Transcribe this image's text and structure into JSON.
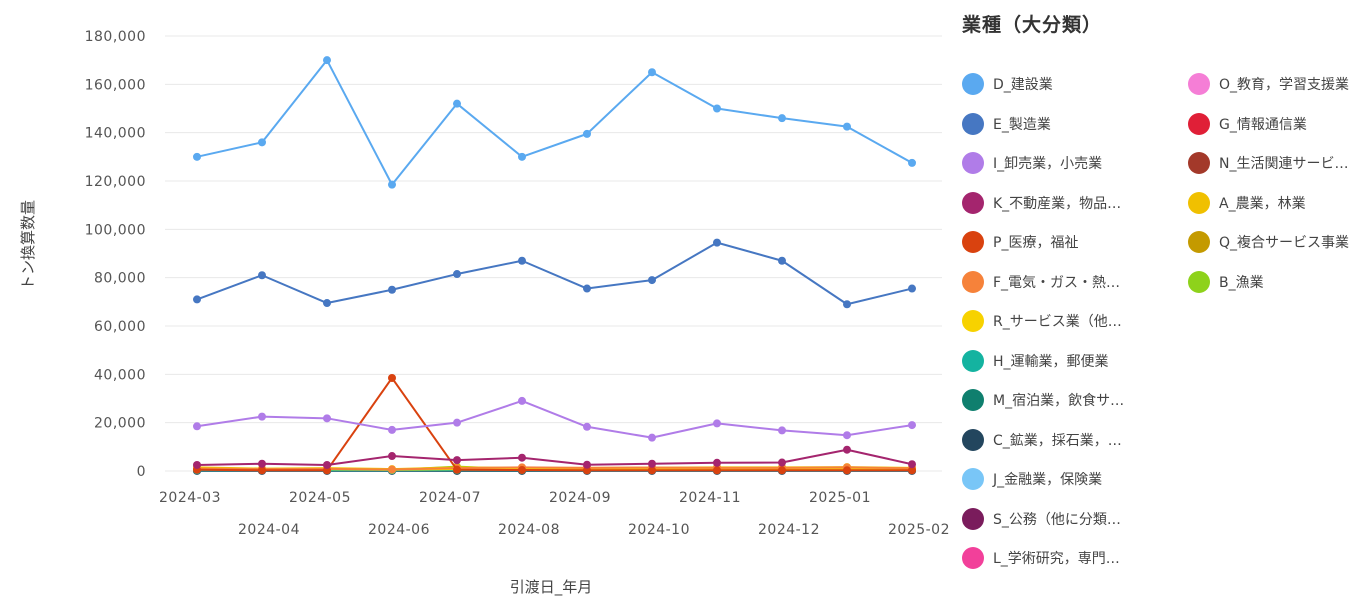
{
  "chart_data": {
    "type": "line",
    "xlabel": "引渡日_年月",
    "ylabel": "トン換算数量",
    "ylim": [
      0,
      180000
    ],
    "yticks": [
      0,
      20000,
      40000,
      60000,
      80000,
      100000,
      120000,
      140000,
      160000,
      180000
    ],
    "ytick_labels": [
      "0",
      "20,000",
      "40,000",
      "60,000",
      "80,000",
      "100,000",
      "120,000",
      "140,000",
      "160,000",
      "180,000"
    ],
    "categories": [
      "2024-03",
      "2024-04",
      "2024-05",
      "2024-06",
      "2024-07",
      "2024-08",
      "2024-09",
      "2024-10",
      "2024-11",
      "2024-12",
      "2025-01",
      "2025-02"
    ],
    "grid": true,
    "legend_position": "right",
    "legend_title": "業種（大分類）",
    "series": [
      {
        "name": "D_建設業",
        "color": "#5aa9f0",
        "values": [
          130000,
          136000,
          170000,
          118500,
          152000,
          130000,
          139500,
          165000,
          150000,
          146000,
          142500,
          127500
        ]
      },
      {
        "name": "E_製造業",
        "color": "#4677c2",
        "values": [
          71000,
          81000,
          69500,
          75000,
          81500,
          87000,
          75500,
          79000,
          94500,
          87000,
          69000,
          75500
        ]
      },
      {
        "name": "I_卸売業，小売業",
        "color": "#b07ce8",
        "values": [
          18500,
          22500,
          21800,
          17000,
          20000,
          29000,
          18300,
          13800,
          19700,
          16800,
          14800,
          19000
        ]
      },
      {
        "name": "K_不動産業，物品…",
        "color": "#a4256e",
        "values": [
          2500,
          3000,
          2500,
          6200,
          4500,
          5500,
          2600,
          3000,
          3400,
          3500,
          8800,
          2800
        ]
      },
      {
        "name": "P_医療，福祉",
        "color": "#d9420f",
        "values": [
          500,
          300,
          300,
          38500,
          500,
          400,
          300,
          300,
          300,
          300,
          300,
          300
        ]
      },
      {
        "name": "F_電気・ガス・熱…",
        "color": "#f6823a",
        "values": [
          1000,
          800,
          900,
          600,
          1200,
          1500,
          1300,
          1400,
          1300,
          1300,
          1500,
          1100
        ]
      },
      {
        "name": "R_サービス業（他…",
        "color": "#f7d200",
        "values": [
          800,
          600,
          700,
          500,
          800,
          900,
          800,
          900,
          900,
          900,
          900,
          700
        ]
      },
      {
        "name": "H_運輸業，郵便業",
        "color": "#14b3a0",
        "values": [
          300,
          300,
          300,
          300,
          400,
          400,
          300,
          300,
          300,
          300,
          300,
          300
        ]
      },
      {
        "name": "M_宿泊業，飲食サ…",
        "color": "#0f7f6e",
        "values": [
          200,
          200,
          200,
          200,
          200,
          200,
          200,
          200,
          200,
          200,
          200,
          200
        ]
      },
      {
        "name": "C_鉱業，採石業，…",
        "color": "#23465e",
        "values": [
          100,
          100,
          100,
          100,
          100,
          100,
          100,
          100,
          100,
          100,
          100,
          100
        ]
      },
      {
        "name": "J_金融業，保険業",
        "color": "#79c6f7",
        "values": [
          100,
          100,
          100,
          100,
          100,
          100,
          100,
          100,
          100,
          100,
          100,
          100
        ]
      },
      {
        "name": "S_公務（他に分類…",
        "color": "#7a1c5c",
        "values": [
          100,
          100,
          100,
          100,
          100,
          100,
          100,
          100,
          100,
          100,
          100,
          100
        ]
      },
      {
        "name": "L_学術研究，専門…",
        "color": "#f2409a",
        "values": [
          100,
          100,
          100,
          100,
          100,
          100,
          100,
          100,
          100,
          100,
          100,
          100
        ]
      },
      {
        "name": "O_教育，学習支援業",
        "color": "#f57ed6",
        "values": [
          100,
          100,
          100,
          100,
          100,
          100,
          100,
          100,
          100,
          100,
          100,
          100
        ]
      },
      {
        "name": "G_情報通信業",
        "color": "#e01f37",
        "values": [
          100,
          100,
          100,
          100,
          100,
          100,
          100,
          100,
          100,
          100,
          100,
          100
        ]
      },
      {
        "name": "N_生活関連サービ…",
        "color": "#a3392a",
        "values": [
          100,
          100,
          100,
          100,
          100,
          100,
          100,
          100,
          100,
          100,
          100,
          100
        ]
      },
      {
        "name": "A_農業，林業",
        "color": "#f0c000",
        "values": [
          1500,
          1000,
          1200,
          800,
          1500,
          1300,
          1300,
          1400,
          1500,
          1500,
          1600,
          1300
        ]
      },
      {
        "name": "Q_複合サービス事業",
        "color": "#c49a00",
        "values": [
          400,
          300,
          300,
          300,
          400,
          400,
          300,
          300,
          300,
          300,
          300,
          300
        ]
      },
      {
        "name": "B_漁業",
        "color": "#8ed21b",
        "values": [
          700,
          600,
          500,
          400,
          1800,
          700,
          600,
          600,
          500,
          500,
          500,
          500
        ]
      }
    ]
  }
}
